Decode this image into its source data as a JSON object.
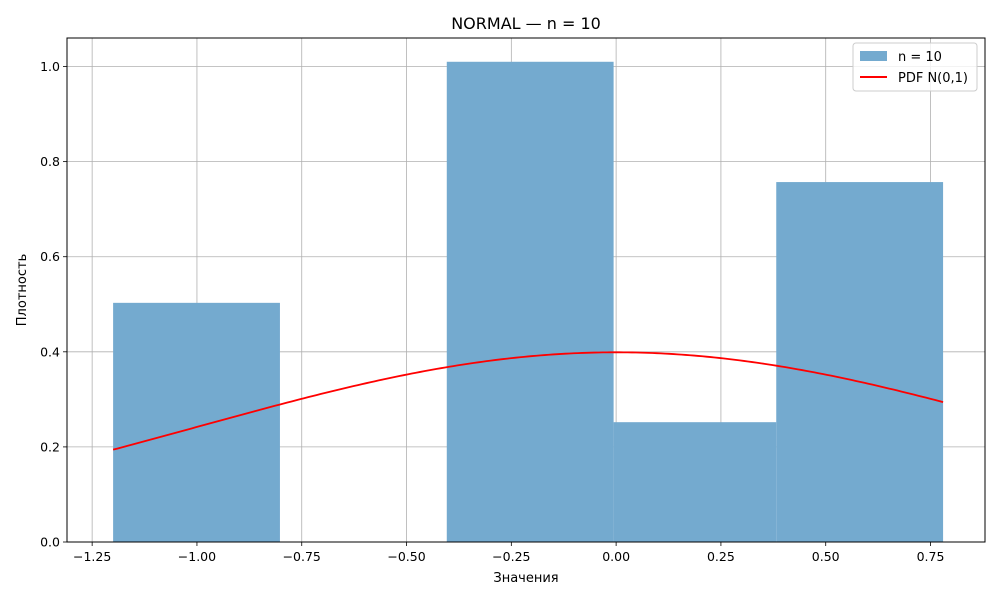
{
  "chart_data": {
    "type": "bar",
    "title": "NORMAL — n = 10",
    "xlabel": "Значения",
    "ylabel": "Плотность",
    "xlim": [
      -1.31,
      0.88
    ],
    "ylim": [
      0,
      1.06
    ],
    "grid": true,
    "legend_position": "top-right",
    "x_ticks": [
      -1.25,
      -1.0,
      -0.75,
      -0.5,
      -0.25,
      0.0,
      0.25,
      0.5,
      0.75
    ],
    "x_tick_labels": [
      "−1.25",
      "−1.00",
      "−0.75",
      "−0.50",
      "−0.25",
      "0.00",
      "0.25",
      "0.50",
      "0.75"
    ],
    "y_ticks": [
      0.0,
      0.2,
      0.4,
      0.6,
      0.8,
      1.0
    ],
    "y_tick_labels": [
      "0.0",
      "0.2",
      "0.4",
      "0.6",
      "0.8",
      "1.0"
    ],
    "histogram": {
      "name": "n = 10",
      "color": "#74aacf",
      "bin_edges": [
        -1.2,
        -0.802,
        -0.404,
        -0.006,
        0.382,
        0.78
      ],
      "values": [
        0.503,
        0.0,
        1.01,
        0.252,
        0.757
      ]
    },
    "pdf_curve": {
      "name": "PDF N(0,1)",
      "color": "#ff0000",
      "x_range": [
        -1.2,
        0.78
      ],
      "mean": 0,
      "std": 1
    },
    "colors": {
      "grid": "#b0b0b0",
      "axis": "#000000"
    }
  }
}
